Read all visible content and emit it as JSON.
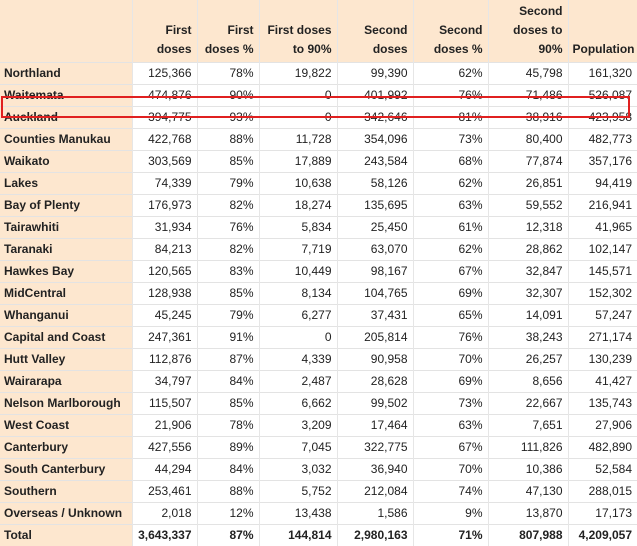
{
  "headers": [
    "",
    "First doses",
    "First doses %",
    "First doses to 90%",
    "Second doses",
    "Second doses %",
    "Second doses to 90%",
    "Population"
  ],
  "rows": [
    [
      "Northland",
      "125,366",
      "78%",
      "19,822",
      "99,390",
      "62%",
      "45,798",
      "161,320"
    ],
    [
      "Waitemata",
      "474,876",
      "90%",
      "0",
      "401,992",
      "76%",
      "71,486",
      "526,087"
    ],
    [
      "Auckland",
      "394,775",
      "93%",
      "0",
      "342,646",
      "81%",
      "38,916",
      "423,958"
    ],
    [
      "Counties Manukau",
      "422,768",
      "88%",
      "11,728",
      "354,096",
      "73%",
      "80,400",
      "482,773"
    ],
    [
      "Waikato",
      "303,569",
      "85%",
      "17,889",
      "243,584",
      "68%",
      "77,874",
      "357,176"
    ],
    [
      "Lakes",
      "74,339",
      "79%",
      "10,638",
      "58,126",
      "62%",
      "26,851",
      "94,419"
    ],
    [
      "Bay of Plenty",
      "176,973",
      "82%",
      "18,274",
      "135,695",
      "63%",
      "59,552",
      "216,941"
    ],
    [
      "Tairawhiti",
      "31,934",
      "76%",
      "5,834",
      "25,450",
      "61%",
      "12,318",
      "41,965"
    ],
    [
      "Taranaki",
      "84,213",
      "82%",
      "7,719",
      "63,070",
      "62%",
      "28,862",
      "102,147"
    ],
    [
      "Hawkes Bay",
      "120,565",
      "83%",
      "10,449",
      "98,167",
      "67%",
      "32,847",
      "145,571"
    ],
    [
      "MidCentral",
      "128,938",
      "85%",
      "8,134",
      "104,765",
      "69%",
      "32,307",
      "152,302"
    ],
    [
      "Whanganui",
      "45,245",
      "79%",
      "6,277",
      "37,431",
      "65%",
      "14,091",
      "57,247"
    ],
    [
      "Capital and Coast",
      "247,361",
      "91%",
      "0",
      "205,814",
      "76%",
      "38,243",
      "271,174"
    ],
    [
      "Hutt Valley",
      "112,876",
      "87%",
      "4,339",
      "90,958",
      "70%",
      "26,257",
      "130,239"
    ],
    [
      "Wairarapa",
      "34,797",
      "84%",
      "2,487",
      "28,628",
      "69%",
      "8,656",
      "41,427"
    ],
    [
      "Nelson Marlborough",
      "115,507",
      "85%",
      "6,662",
      "99,502",
      "73%",
      "22,667",
      "135,743"
    ],
    [
      "West Coast",
      "21,906",
      "78%",
      "3,209",
      "17,464",
      "63%",
      "7,651",
      "27,906"
    ],
    [
      "Canterbury",
      "427,556",
      "89%",
      "7,045",
      "322,775",
      "67%",
      "111,826",
      "482,890"
    ],
    [
      "South Canterbury",
      "44,294",
      "84%",
      "3,032",
      "36,940",
      "70%",
      "10,386",
      "52,584"
    ],
    [
      "Southern",
      "253,461",
      "88%",
      "5,752",
      "212,084",
      "74%",
      "47,130",
      "288,015"
    ],
    [
      "Overseas / Unknown",
      "2,018",
      "12%",
      "13,438",
      "1,586",
      "9%",
      "13,870",
      "17,173"
    ]
  ],
  "total": [
    "Total",
    "3,643,337",
    "87%",
    "144,814",
    "2,980,163",
    "71%",
    "807,988",
    "4,209,057"
  ],
  "highlighted_row": "Auckland",
  "highlight_color": "#e02020",
  "header_background": "#fde7cf"
}
